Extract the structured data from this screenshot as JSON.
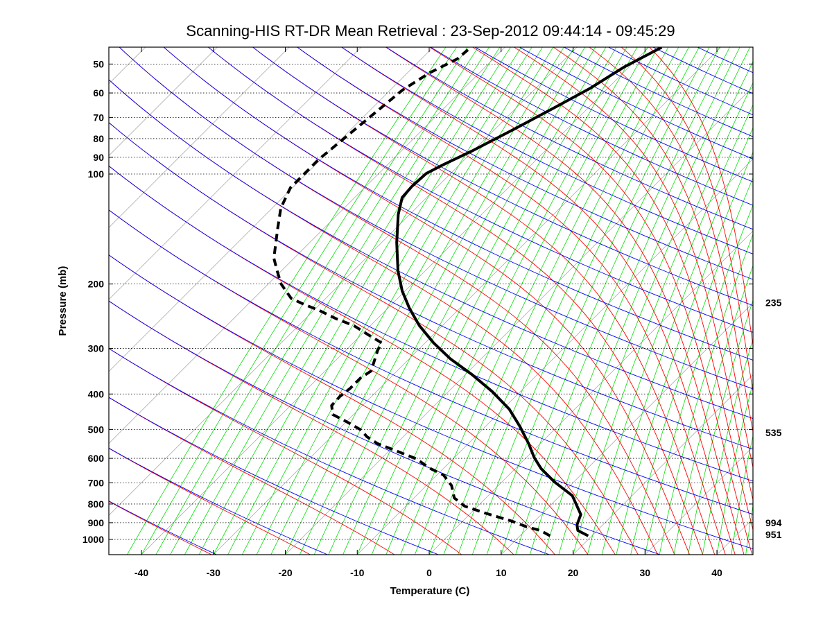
{
  "chart_data": {
    "type": "line",
    "subtype": "skew-T log-p diagram",
    "title": "Scanning-HIS RT-DR Mean Retrieval : 23-Sep-2012 09:44:14 - 09:45:29",
    "xlabel": "Temperature (C)",
    "ylabel": "Pressure (mb)",
    "xlim": [
      -45,
      45
    ],
    "ylim": [
      1100,
      45
    ],
    "x_ticks": [
      "-40",
      "-30",
      "-20",
      "-10",
      "0",
      "10",
      "20",
      "30",
      "40"
    ],
    "x_tick_values": [
      -40,
      -30,
      -20,
      -10,
      0,
      10,
      20,
      30,
      40
    ],
    "y_ticks": [
      "50",
      "60",
      "70",
      "80",
      "90",
      "100",
      "200",
      "300",
      "400",
      "500",
      "600",
      "700",
      "800",
      "900",
      "1000"
    ],
    "y_tick_values": [
      50,
      60,
      70,
      80,
      90,
      100,
      200,
      300,
      400,
      500,
      600,
      700,
      800,
      900,
      1000
    ],
    "grid": "dotted horizontal at pressure ticks",
    "right_labels": [
      {
        "text": "235",
        "pressure": 225
      },
      {
        "text": "535",
        "pressure": 510
      },
      {
        "text": "994",
        "pressure": 915
      },
      {
        "text": "951",
        "pressure": 955
      }
    ],
    "background": {
      "isotherm_step_C": 10,
      "adiabat_theta_start_K": 237,
      "adiabat_theta_step_K": 15,
      "adiabat_count": 24,
      "mixing_ratio_dewpoint_start_C": -42,
      "mixing_ratio_dewpoint_step_C": 2,
      "colors": {
        "isotherm": "#a0a0a0",
        "dry_adiabat": "#0000ff",
        "moist_adiabat": "#ff0000",
        "mixing_ratio": "#00e000"
      }
    },
    "series": [
      {
        "name": "Temperature",
        "style": "solid",
        "color": "#000000",
        "pressure": [
          978,
          945,
          912,
          855,
          759,
          696,
          640,
          597,
          547,
          491,
          440,
          394,
          353,
          321,
          290,
          260,
          233,
          209,
          184,
          154,
          129,
          116,
          108,
          99.6,
          94.5,
          86.6,
          75.6,
          65.7,
          58.4,
          51.0,
          45.0
        ],
        "temperature": [
          19.5,
          17.3,
          16.4,
          15.5,
          11.7,
          7.3,
          3.6,
          1.1,
          -1.6,
          -5.2,
          -9.1,
          -13.9,
          -19.2,
          -24.2,
          -28.8,
          -33.2,
          -37.0,
          -40.4,
          -43.8,
          -47.9,
          -51.6,
          -53.4,
          -53.6,
          -53.4,
          -52.3,
          -50.2,
          -47.4,
          -44.7,
          -42.5,
          -40.7,
          -38.2
        ]
      },
      {
        "name": "Dewpoint",
        "style": "dashed",
        "color": "#000000",
        "pressure": [
          978,
          945,
          924,
          893,
          847,
          811,
          770,
          712,
          666,
          638,
          602,
          571,
          547,
          524,
          501,
          476,
          455,
          430,
          406,
          386,
          361,
          346,
          324,
          303,
          290,
          278,
          260,
          249,
          236,
          228,
          219,
          200,
          184,
          170,
          154,
          141,
          124,
          109,
          99.6,
          91.2,
          81.8,
          73.3,
          65.7,
          58.9,
          52.8,
          48.4,
          45.7
        ],
        "temperature": [
          14.2,
          12.1,
          9.7,
          7.0,
          2.0,
          -1.8,
          -4.4,
          -6.5,
          -9.1,
          -12.0,
          -15.1,
          -19.2,
          -22.6,
          -25.0,
          -26.9,
          -30.0,
          -32.9,
          -34.3,
          -34.4,
          -34.1,
          -34.1,
          -33.6,
          -34.6,
          -35.6,
          -36.0,
          -38.5,
          -42.3,
          -45.7,
          -49.3,
          -52.0,
          -54.8,
          -58.2,
          -60.6,
          -62.8,
          -64.7,
          -66.4,
          -68.8,
          -70.3,
          -70.3,
          -70.3,
          -69.8,
          -69.3,
          -68.8,
          -68.3,
          -66.9,
          -65.0,
          -64.8
        ]
      }
    ]
  }
}
